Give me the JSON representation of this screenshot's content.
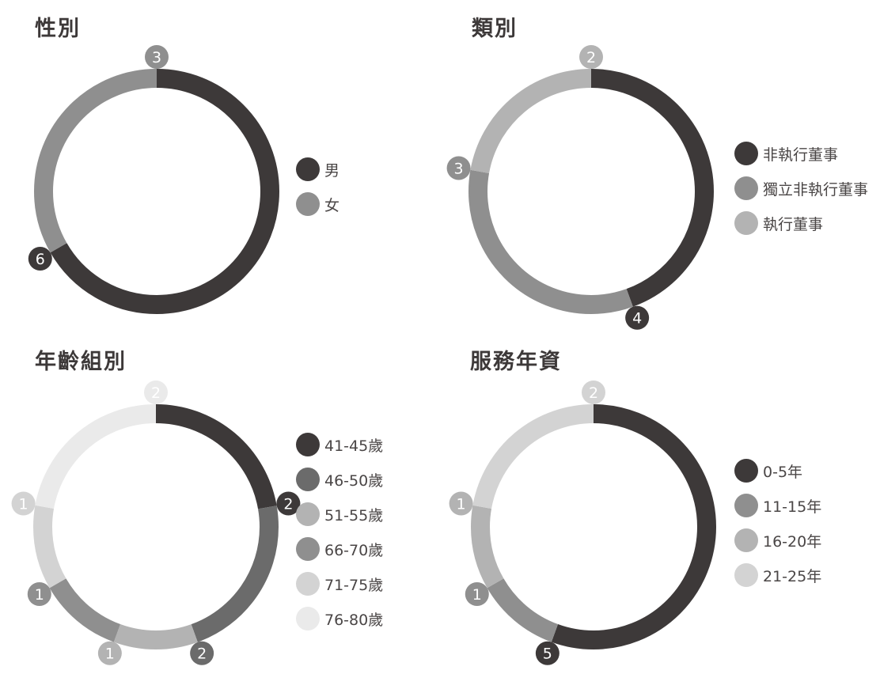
{
  "chart_data": [
    {
      "type": "pie",
      "title": "性別",
      "categories": [
        "男",
        "女"
      ],
      "values": [
        6,
        3
      ],
      "colors": [
        "#3d3939",
        "#8f8f8f"
      ],
      "label_text_colors": [
        "#ffffff",
        "#ffffff"
      ],
      "donut": true,
      "legend": "right"
    },
    {
      "type": "pie",
      "title": "類別",
      "categories": [
        "非執行董事",
        "獨立非執行董事",
        "執行董事"
      ],
      "values": [
        4,
        3,
        2
      ],
      "colors": [
        "#3d3939",
        "#8f8f8f",
        "#b3b3b3"
      ],
      "label_text_colors": [
        "#ffffff",
        "#ffffff",
        "#ffffff"
      ],
      "donut": true,
      "legend": "right"
    },
    {
      "type": "pie",
      "title": "年齡組別",
      "categories": [
        "41-45歲",
        "46-50歲",
        "51-55歲",
        "66-70歲",
        "71-75歲",
        "76-80歲"
      ],
      "values": [
        2,
        2,
        1,
        1,
        1,
        2
      ],
      "colors": [
        "#3d3939",
        "#6b6b6b",
        "#b3b3b3",
        "#8f8f8f",
        "#d3d3d3",
        "#eaeaea"
      ],
      "label_text_colors": [
        "#ffffff",
        "#ffffff",
        "#ffffff",
        "#ffffff",
        "#ffffff",
        "#ffffff"
      ],
      "donut": true,
      "legend": "right"
    },
    {
      "type": "pie",
      "title": "服務年資",
      "categories": [
        "0-5年",
        "11-15年",
        "16-20年",
        "21-25年"
      ],
      "values": [
        5,
        1,
        1,
        2
      ],
      "colors": [
        "#3d3939",
        "#8f8f8f",
        "#b3b3b3",
        "#d3d3d3"
      ],
      "label_text_colors": [
        "#ffffff",
        "#ffffff",
        "#ffffff",
        "#ffffff"
      ],
      "donut": true,
      "legend": "right"
    }
  ]
}
